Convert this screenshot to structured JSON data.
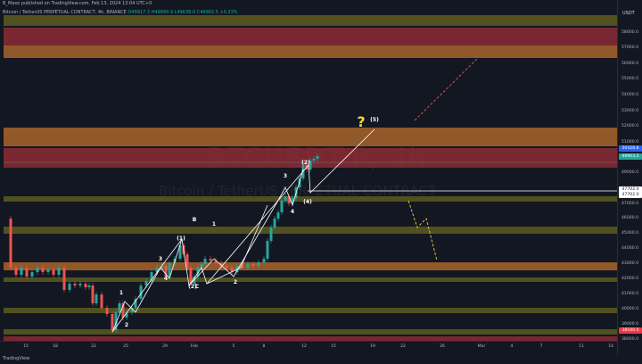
{
  "header": {
    "line1": "B_Maxe published on TradingView.com, Feb 13, 2024 13:04 UTC+0",
    "line2_symbol": "Bitcoin / TetherUS PERPETUAL CONTRACT, 4h, BINANCE",
    "line2_ohlc": "O49917.3  H49999.9  L49638.0  C49902.5  +0.23%"
  },
  "watermark": {
    "line1": "BTCUSDT.P, 4h",
    "line2": "Bitcoin / TetherUS PERPETUAL CONTRACT"
  },
  "price_scale": {
    "currency": "USDT",
    "ticks": [
      "58000.0",
      "57000.0",
      "56000.0",
      "55000.0",
      "54000.0",
      "53000.0",
      "52000.0",
      "51000.0",
      "50000.0",
      "49000.0",
      "48000.0",
      "47000.0",
      "46000.0",
      "45000.0",
      "44000.0",
      "43000.0",
      "42000.0",
      "41000.0",
      "40000.0",
      "39000.0",
      "38000.0"
    ],
    "tags": [
      {
        "label": "50428.8",
        "color": "#2962ff"
      },
      {
        "label": "49903.5",
        "color": "#26a69a"
      },
      {
        "label": "47702.0",
        "color": "#ffffff",
        "text": "#131722"
      },
      {
        "label": "47702.0",
        "color": "#ffffff",
        "text": "#131722"
      },
      {
        "label": "38540.0",
        "color": "#f23645"
      }
    ]
  },
  "time_scale": {
    "ticks": [
      "15",
      "18",
      "22",
      "25",
      "29",
      "Feb",
      "5",
      "8",
      "12",
      "15",
      "19",
      "22",
      "26",
      "Mar",
      "4",
      "7",
      "11",
      "14"
    ]
  },
  "wave_labels": [
    "1",
    "2",
    "3",
    "4",
    "(1)",
    "B",
    "(2)",
    "C",
    "1",
    "2",
    "3",
    "4",
    "(2)",
    "(4)",
    "(5)",
    "?"
  ],
  "branding": "TradingView",
  "colors": {
    "up": "#26a69a",
    "down": "#ef5350",
    "zone_red": "#8c2a32",
    "zone_orange": "#a8642a",
    "zone_olive": "#5d5a21",
    "wave": "#ffffff",
    "projection_up": "#ef5350",
    "projection_down": "#f0d23a"
  }
}
